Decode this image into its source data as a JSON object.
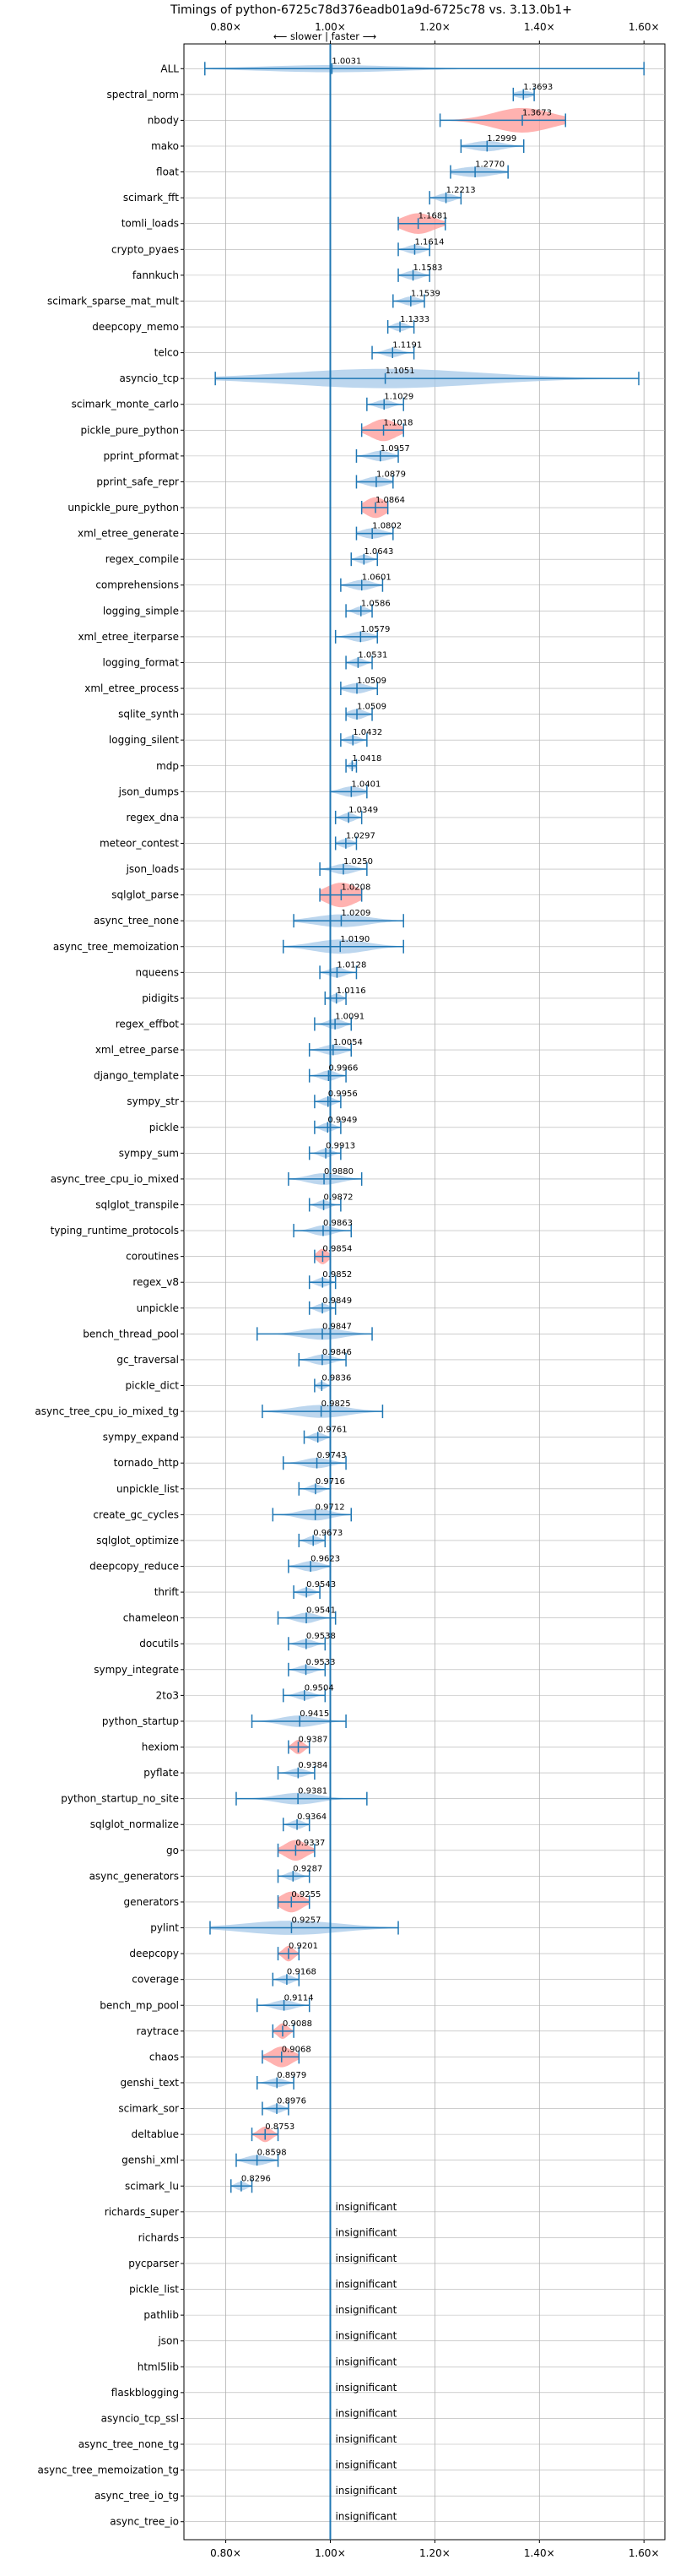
{
  "chart_data": {
    "type": "violin",
    "title": "Timings of python-6725c78d376eadb01a9d-6725c78 vs. 3.13.0b1+",
    "direction_label": "⟵ slower  |  faster ⟶",
    "x_ticks": [
      "0.80×",
      "1.00×",
      "1.20×",
      "1.40×",
      "1.60×"
    ],
    "x_tick_values": [
      0.8,
      1.0,
      1.2,
      1.4,
      1.6
    ],
    "xlim": [
      0.72,
      1.64
    ],
    "reference_line": 1.0,
    "insignificant_label": "insignificant",
    "colors": {
      "normal": "#1f77b4",
      "highlight": "#ff9896",
      "fill": "#a6c8e8",
      "grid": "#b0b0b0"
    },
    "benchmarks": [
      {
        "name": "ALL",
        "label": "1.0031",
        "median": 1.0031,
        "min": 0.76,
        "max": 1.6,
        "width": 0.28,
        "spread": 0.13
      },
      {
        "name": "spectral_norm",
        "label": "1.3693",
        "median": 1.3693,
        "min": 1.35,
        "max": 1.39,
        "width": 0.3,
        "spread": 0.015
      },
      {
        "name": "nbody",
        "label": "1.3673",
        "median": 1.3673,
        "min": 1.21,
        "max": 1.45,
        "width": 0.95,
        "spread": 0.055,
        "highlight": true
      },
      {
        "name": "mako",
        "label": "1.2999",
        "median": 1.2999,
        "min": 1.25,
        "max": 1.37,
        "width": 0.4,
        "spread": 0.03
      },
      {
        "name": "float",
        "label": "1.2770",
        "median": 1.277,
        "min": 1.23,
        "max": 1.34,
        "width": 0.4,
        "spread": 0.035
      },
      {
        "name": "scimark_fft",
        "label": "1.2213",
        "median": 1.2213,
        "min": 1.19,
        "max": 1.25,
        "width": 0.35,
        "spread": 0.015
      },
      {
        "name": "tomli_loads",
        "label": "1.1681",
        "median": 1.1681,
        "min": 1.13,
        "max": 1.22,
        "width": 0.8,
        "spread": 0.03,
        "highlight": true
      },
      {
        "name": "crypto_pyaes",
        "label": "1.1614",
        "median": 1.1614,
        "min": 1.13,
        "max": 1.19,
        "width": 0.35,
        "spread": 0.015
      },
      {
        "name": "fannkuch",
        "label": "1.1583",
        "median": 1.1583,
        "min": 1.13,
        "max": 1.19,
        "width": 0.35,
        "spread": 0.015
      },
      {
        "name": "scimark_sparse_mat_mult",
        "label": "1.1539",
        "median": 1.1539,
        "min": 1.12,
        "max": 1.18,
        "width": 0.35,
        "spread": 0.015
      },
      {
        "name": "deepcopy_memo",
        "label": "1.1333",
        "median": 1.1333,
        "min": 1.11,
        "max": 1.16,
        "width": 0.35,
        "spread": 0.012
      },
      {
        "name": "telco",
        "label": "1.1191",
        "median": 1.1191,
        "min": 1.08,
        "max": 1.16,
        "width": 0.35,
        "spread": 0.015
      },
      {
        "name": "asyncio_tcp",
        "label": "1.1051",
        "median": 1.1051,
        "min": 0.78,
        "max": 1.59,
        "width": 0.75,
        "spread": 0.18
      },
      {
        "name": "scimark_monte_carlo",
        "label": "1.1029",
        "median": 1.1029,
        "min": 1.07,
        "max": 1.14,
        "width": 0.35,
        "spread": 0.015
      },
      {
        "name": "pickle_pure_python",
        "label": "1.1018",
        "median": 1.1018,
        "min": 1.06,
        "max": 1.14,
        "width": 0.85,
        "spread": 0.025,
        "highlight": true
      },
      {
        "name": "pprint_pformat",
        "label": "1.0957",
        "median": 1.0957,
        "min": 1.05,
        "max": 1.13,
        "width": 0.4,
        "spread": 0.02
      },
      {
        "name": "pprint_safe_repr",
        "label": "1.0879",
        "median": 1.0879,
        "min": 1.05,
        "max": 1.12,
        "width": 0.4,
        "spread": 0.02
      },
      {
        "name": "unpickle_pure_python",
        "label": "1.0864",
        "median": 1.0864,
        "min": 1.06,
        "max": 1.11,
        "width": 0.8,
        "spread": 0.02,
        "highlight": true
      },
      {
        "name": "xml_etree_generate",
        "label": "1.0802",
        "median": 1.0802,
        "min": 1.05,
        "max": 1.12,
        "width": 0.4,
        "spread": 0.02
      },
      {
        "name": "regex_compile",
        "label": "1.0643",
        "median": 1.0643,
        "min": 1.04,
        "max": 1.09,
        "width": 0.35,
        "spread": 0.012
      },
      {
        "name": "comprehensions",
        "label": "1.0601",
        "median": 1.0601,
        "min": 1.02,
        "max": 1.1,
        "width": 0.4,
        "spread": 0.02
      },
      {
        "name": "logging_simple",
        "label": "1.0586",
        "median": 1.0586,
        "min": 1.03,
        "max": 1.08,
        "width": 0.35,
        "spread": 0.012
      },
      {
        "name": "xml_etree_iterparse",
        "label": "1.0579",
        "median": 1.0579,
        "min": 1.01,
        "max": 1.09,
        "width": 0.4,
        "spread": 0.02
      },
      {
        "name": "logging_format",
        "label": "1.0531",
        "median": 1.0531,
        "min": 1.03,
        "max": 1.08,
        "width": 0.35,
        "spread": 0.012
      },
      {
        "name": "xml_etree_process",
        "label": "1.0509",
        "median": 1.0509,
        "min": 1.02,
        "max": 1.09,
        "width": 0.4,
        "spread": 0.02
      },
      {
        "name": "sqlite_synth",
        "label": "1.0509",
        "median": 1.0509,
        "min": 1.03,
        "max": 1.08,
        "width": 0.4,
        "spread": 0.015
      },
      {
        "name": "logging_silent",
        "label": "1.0432",
        "median": 1.0432,
        "min": 1.02,
        "max": 1.07,
        "width": 0.35,
        "spread": 0.012
      },
      {
        "name": "mdp",
        "label": "1.0418",
        "median": 1.0418,
        "min": 1.03,
        "max": 1.05,
        "width": 0.3,
        "spread": 0.006
      },
      {
        "name": "json_dumps",
        "label": "1.0401",
        "median": 1.0401,
        "min": 1.0,
        "max": 1.07,
        "width": 0.4,
        "spread": 0.02
      },
      {
        "name": "regex_dna",
        "label": "1.0349",
        "median": 1.0349,
        "min": 1.01,
        "max": 1.06,
        "width": 0.35,
        "spread": 0.012
      },
      {
        "name": "meteor_contest",
        "label": "1.0297",
        "median": 1.0297,
        "min": 1.01,
        "max": 1.05,
        "width": 0.35,
        "spread": 0.012
      },
      {
        "name": "json_loads",
        "label": "1.0250",
        "median": 1.025,
        "min": 0.98,
        "max": 1.07,
        "width": 0.4,
        "spread": 0.02
      },
      {
        "name": "sqlglot_parse",
        "label": "1.0208",
        "median": 1.0208,
        "min": 0.98,
        "max": 1.06,
        "width": 0.95,
        "spread": 0.03,
        "highlight": true
      },
      {
        "name": "async_tree_none",
        "label": "1.0209",
        "median": 1.0209,
        "min": 0.93,
        "max": 1.14,
        "width": 0.5,
        "spread": 0.05
      },
      {
        "name": "async_tree_memoization",
        "label": "1.0190",
        "median": 1.019,
        "min": 0.91,
        "max": 1.14,
        "width": 0.55,
        "spread": 0.05
      },
      {
        "name": "nqueens",
        "label": "1.0128",
        "median": 1.0128,
        "min": 0.98,
        "max": 1.05,
        "width": 0.4,
        "spread": 0.015
      },
      {
        "name": "pidigits",
        "label": "1.0116",
        "median": 1.0116,
        "min": 0.99,
        "max": 1.03,
        "width": 0.35,
        "spread": 0.01
      },
      {
        "name": "regex_effbot",
        "label": "1.0091",
        "median": 1.0091,
        "min": 0.97,
        "max": 1.04,
        "width": 0.4,
        "spread": 0.015
      },
      {
        "name": "xml_etree_parse",
        "label": "1.0054",
        "median": 1.0054,
        "min": 0.96,
        "max": 1.04,
        "width": 0.4,
        "spread": 0.02
      },
      {
        "name": "django_template",
        "label": "0.9966",
        "median": 0.9966,
        "min": 0.96,
        "max": 1.03,
        "width": 0.4,
        "spread": 0.015
      },
      {
        "name": "sympy_str",
        "label": "0.9956",
        "median": 0.9956,
        "min": 0.97,
        "max": 1.02,
        "width": 0.35,
        "spread": 0.012
      },
      {
        "name": "pickle",
        "label": "0.9949",
        "median": 0.9949,
        "min": 0.97,
        "max": 1.02,
        "width": 0.35,
        "spread": 0.012
      },
      {
        "name": "sympy_sum",
        "label": "0.9913",
        "median": 0.9913,
        "min": 0.96,
        "max": 1.02,
        "width": 0.35,
        "spread": 0.012
      },
      {
        "name": "async_tree_cpu_io_mixed",
        "label": "0.9880",
        "median": 0.988,
        "min": 0.92,
        "max": 1.06,
        "width": 0.45,
        "spread": 0.03
      },
      {
        "name": "sqlglot_transpile",
        "label": "0.9872",
        "median": 0.9872,
        "min": 0.96,
        "max": 1.02,
        "width": 0.35,
        "spread": 0.012
      },
      {
        "name": "typing_runtime_protocols",
        "label": "0.9863",
        "median": 0.9863,
        "min": 0.93,
        "max": 1.04,
        "width": 0.4,
        "spread": 0.02
      },
      {
        "name": "coroutines",
        "label": "0.9854",
        "median": 0.9854,
        "min": 0.97,
        "max": 1.0,
        "width": 0.6,
        "spread": 0.01,
        "highlight": true
      },
      {
        "name": "regex_v8",
        "label": "0.9852",
        "median": 0.9852,
        "min": 0.96,
        "max": 1.01,
        "width": 0.35,
        "spread": 0.012
      },
      {
        "name": "unpickle",
        "label": "0.9849",
        "median": 0.9849,
        "min": 0.96,
        "max": 1.01,
        "width": 0.35,
        "spread": 0.012
      },
      {
        "name": "bench_thread_pool",
        "label": "0.9847",
        "median": 0.9847,
        "min": 0.86,
        "max": 1.08,
        "width": 0.45,
        "spread": 0.04
      },
      {
        "name": "gc_traversal",
        "label": "0.9846",
        "median": 0.9846,
        "min": 0.94,
        "max": 1.03,
        "width": 0.4,
        "spread": 0.02
      },
      {
        "name": "pickle_dict",
        "label": "0.9836",
        "median": 0.9836,
        "min": 0.97,
        "max": 1.0,
        "width": 0.3,
        "spread": 0.008
      },
      {
        "name": "async_tree_cpu_io_mixed_tg",
        "label": "0.9825",
        "median": 0.9825,
        "min": 0.87,
        "max": 1.1,
        "width": 0.5,
        "spread": 0.05
      },
      {
        "name": "sympy_expand",
        "label": "0.9761",
        "median": 0.9761,
        "min": 0.95,
        "max": 1.0,
        "width": 0.35,
        "spread": 0.012
      },
      {
        "name": "tornado_http",
        "label": "0.9743",
        "median": 0.9743,
        "min": 0.91,
        "max": 1.03,
        "width": 0.4,
        "spread": 0.025
      },
      {
        "name": "unpickle_list",
        "label": "0.9716",
        "median": 0.9716,
        "min": 0.94,
        "max": 1.0,
        "width": 0.35,
        "spread": 0.012
      },
      {
        "name": "create_gc_cycles",
        "label": "0.9712",
        "median": 0.9712,
        "min": 0.89,
        "max": 1.04,
        "width": 0.45,
        "spread": 0.03
      },
      {
        "name": "sqlglot_optimize",
        "label": "0.9673",
        "median": 0.9673,
        "min": 0.94,
        "max": 0.99,
        "width": 0.35,
        "spread": 0.012
      },
      {
        "name": "deepcopy_reduce",
        "label": "0.9623",
        "median": 0.9623,
        "min": 0.92,
        "max": 1.0,
        "width": 0.4,
        "spread": 0.02
      },
      {
        "name": "thrift",
        "label": "0.9543",
        "median": 0.9543,
        "min": 0.93,
        "max": 0.98,
        "width": 0.35,
        "spread": 0.012
      },
      {
        "name": "chameleon",
        "label": "0.9541",
        "median": 0.9541,
        "min": 0.9,
        "max": 1.01,
        "width": 0.4,
        "spread": 0.02
      },
      {
        "name": "docutils",
        "label": "0.9538",
        "median": 0.9538,
        "min": 0.92,
        "max": 0.99,
        "width": 0.35,
        "spread": 0.015
      },
      {
        "name": "sympy_integrate",
        "label": "0.9533",
        "median": 0.9533,
        "min": 0.92,
        "max": 0.99,
        "width": 0.35,
        "spread": 0.015
      },
      {
        "name": "2to3",
        "label": "0.9504",
        "median": 0.9504,
        "min": 0.91,
        "max": 0.99,
        "width": 0.35,
        "spread": 0.015
      },
      {
        "name": "python_startup",
        "label": "0.9415",
        "median": 0.9415,
        "min": 0.85,
        "max": 1.03,
        "width": 0.45,
        "spread": 0.035
      },
      {
        "name": "hexiom",
        "label": "0.9387",
        "median": 0.9387,
        "min": 0.92,
        "max": 0.96,
        "width": 0.55,
        "spread": 0.01,
        "highlight": true
      },
      {
        "name": "pyflate",
        "label": "0.9384",
        "median": 0.9384,
        "min": 0.9,
        "max": 0.97,
        "width": 0.35,
        "spread": 0.015
      },
      {
        "name": "python_startup_no_site",
        "label": "0.9381",
        "median": 0.9381,
        "min": 0.82,
        "max": 1.07,
        "width": 0.45,
        "spread": 0.04
      },
      {
        "name": "sqlglot_normalize",
        "label": "0.9364",
        "median": 0.9364,
        "min": 0.91,
        "max": 0.96,
        "width": 0.35,
        "spread": 0.012
      },
      {
        "name": "go",
        "label": "0.9337",
        "median": 0.9337,
        "min": 0.9,
        "max": 0.97,
        "width": 0.8,
        "spread": 0.02,
        "highlight": true
      },
      {
        "name": "async_generators",
        "label": "0.9287",
        "median": 0.9287,
        "min": 0.9,
        "max": 0.96,
        "width": 0.35,
        "spread": 0.012
      },
      {
        "name": "generators",
        "label": "0.9255",
        "median": 0.9255,
        "min": 0.9,
        "max": 0.96,
        "width": 0.8,
        "spread": 0.02,
        "highlight": true
      },
      {
        "name": "pylint",
        "label": "0.9257",
        "median": 0.9257,
        "min": 0.77,
        "max": 1.13,
        "width": 0.55,
        "spread": 0.09
      },
      {
        "name": "deepcopy",
        "label": "0.9201",
        "median": 0.9201,
        "min": 0.9,
        "max": 0.94,
        "width": 0.6,
        "spread": 0.01,
        "highlight": true
      },
      {
        "name": "coverage",
        "label": "0.9168",
        "median": 0.9168,
        "min": 0.89,
        "max": 0.94,
        "width": 0.35,
        "spread": 0.012
      },
      {
        "name": "bench_mp_pool",
        "label": "0.9114",
        "median": 0.9114,
        "min": 0.86,
        "max": 0.96,
        "width": 0.4,
        "spread": 0.02
      },
      {
        "name": "raytrace",
        "label": "0.9088",
        "median": 0.9088,
        "min": 0.89,
        "max": 0.93,
        "width": 0.6,
        "spread": 0.01,
        "highlight": true
      },
      {
        "name": "chaos",
        "label": "0.9068",
        "median": 0.9068,
        "min": 0.87,
        "max": 0.94,
        "width": 0.8,
        "spread": 0.02,
        "highlight": true
      },
      {
        "name": "genshi_text",
        "label": "0.8979",
        "median": 0.8979,
        "min": 0.86,
        "max": 0.93,
        "width": 0.35,
        "spread": 0.015
      },
      {
        "name": "scimark_sor",
        "label": "0.8976",
        "median": 0.8976,
        "min": 0.87,
        "max": 0.92,
        "width": 0.35,
        "spread": 0.012
      },
      {
        "name": "deltablue",
        "label": "0.8753",
        "median": 0.8753,
        "min": 0.85,
        "max": 0.9,
        "width": 0.6,
        "spread": 0.012,
        "highlight": true
      },
      {
        "name": "genshi_xml",
        "label": "0.8598",
        "median": 0.8598,
        "min": 0.82,
        "max": 0.9,
        "width": 0.4,
        "spread": 0.02
      },
      {
        "name": "scimark_lu",
        "label": "0.8296",
        "median": 0.8296,
        "min": 0.81,
        "max": 0.85,
        "width": 0.35,
        "spread": 0.01
      },
      {
        "name": "richards_super",
        "insignificant": true
      },
      {
        "name": "richards",
        "insignificant": true
      },
      {
        "name": "pycparser",
        "insignificant": true
      },
      {
        "name": "pickle_list",
        "insignificant": true
      },
      {
        "name": "pathlib",
        "insignificant": true
      },
      {
        "name": "json",
        "insignificant": true
      },
      {
        "name": "html5lib",
        "insignificant": true
      },
      {
        "name": "flaskblogging",
        "insignificant": true
      },
      {
        "name": "asyncio_tcp_ssl",
        "insignificant": true
      },
      {
        "name": "async_tree_none_tg",
        "insignificant": true
      },
      {
        "name": "async_tree_memoization_tg",
        "insignificant": true
      },
      {
        "name": "async_tree_io_tg",
        "insignificant": true
      },
      {
        "name": "async_tree_io",
        "insignificant": true
      }
    ]
  }
}
